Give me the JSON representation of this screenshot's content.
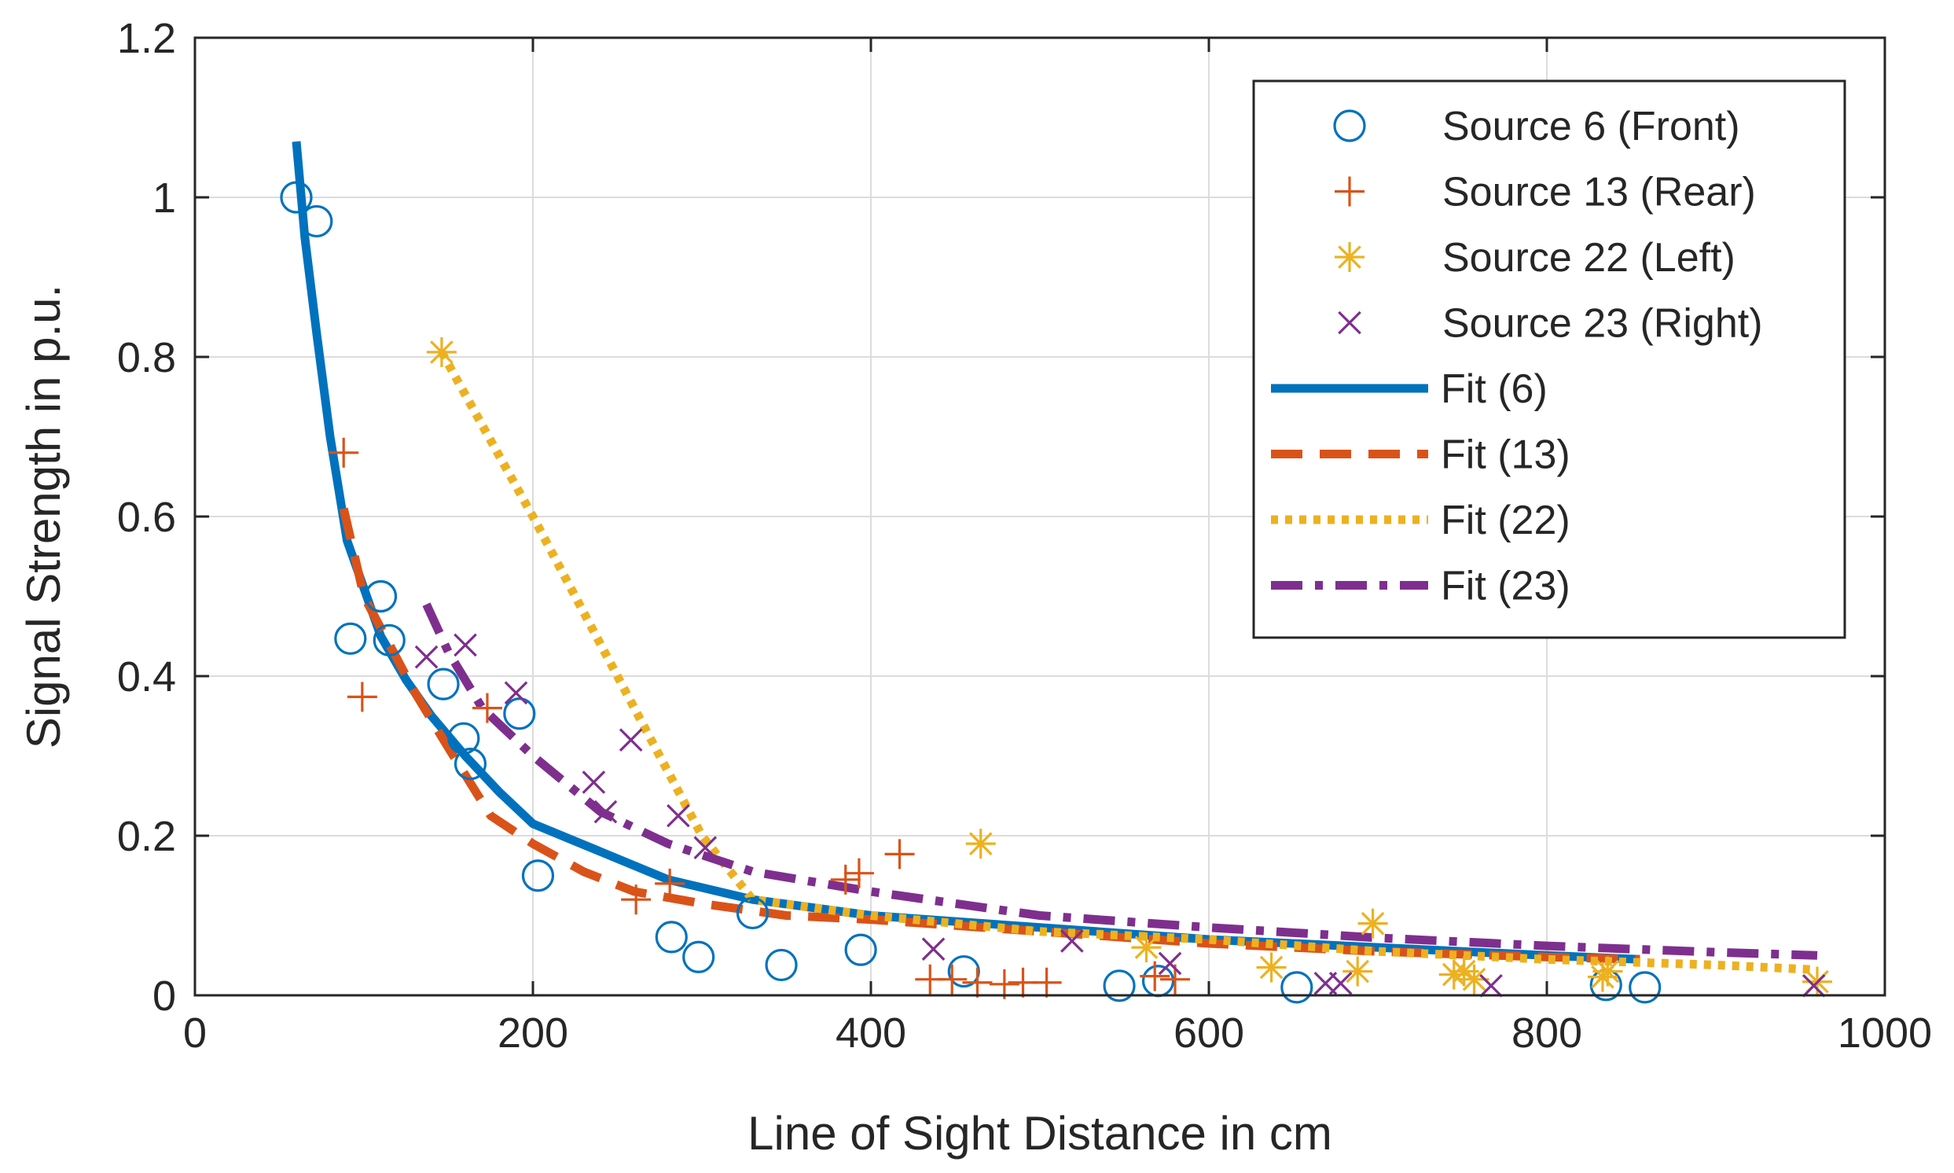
{
  "chart_data": {
    "type": "scatter",
    "title": "",
    "xlabel": "Line of Sight Distance in cm",
    "ylabel": "Signal Strength in p.u.",
    "xlim": [
      0,
      1000
    ],
    "ylim": [
      0,
      1.2
    ],
    "xticks": [
      0,
      200,
      400,
      600,
      800,
      1000
    ],
    "yticks": [
      0,
      0.2,
      0.4,
      0.6,
      0.8,
      1,
      1.2
    ],
    "xtick_labels": [
      "0",
      "200",
      "400",
      "600",
      "800",
      "1000"
    ],
    "ytick_labels": [
      "0",
      "0.2",
      "0.4",
      "0.6",
      "0.8",
      "1",
      "1.2"
    ],
    "grid": true,
    "legend_position": "top-right",
    "series": [
      {
        "name": "Source 6 (Front)",
        "kind": "scatter",
        "marker": "circle",
        "color": "#0072BD",
        "x": [
          60,
          72,
          92,
          110,
          115,
          147,
          159,
          163,
          192,
          203,
          282,
          298,
          330,
          347,
          394,
          455,
          547,
          570,
          652,
          835,
          858
        ],
        "y": [
          1.0,
          0.97,
          0.447,
          0.5,
          0.445,
          0.39,
          0.322,
          0.29,
          0.353,
          0.15,
          0.073,
          0.048,
          0.103,
          0.038,
          0.057,
          0.03,
          0.012,
          0.018,
          0.01,
          0.013,
          0.01
        ]
      },
      {
        "name": "Source 13 (Rear)",
        "kind": "scatter",
        "marker": "plus",
        "color": "#D95319",
        "x": [
          88,
          99,
          173,
          261,
          281,
          385,
          393,
          417,
          435,
          448,
          463,
          479,
          490,
          504,
          568,
          580
        ],
        "y": [
          0.68,
          0.374,
          0.36,
          0.12,
          0.14,
          0.145,
          0.153,
          0.177,
          0.02,
          0.02,
          0.016,
          0.014,
          0.016,
          0.016,
          0.024,
          0.02
        ]
      },
      {
        "name": "Source 22 (Left)",
        "kind": "scatter",
        "marker": "asterisk",
        "color": "#EDB120",
        "x": [
          146,
          465,
          563,
          637,
          688,
          697,
          745,
          751,
          757,
          833,
          836,
          960
        ],
        "y": [
          0.806,
          0.19,
          0.06,
          0.035,
          0.03,
          0.09,
          0.026,
          0.03,
          0.02,
          0.023,
          0.03,
          0.017
        ]
      },
      {
        "name": "Source 23 (Right)",
        "kind": "scatter",
        "marker": "x",
        "color": "#7E2F8E",
        "x": [
          137,
          160,
          190,
          236,
          243,
          258,
          286,
          302,
          437,
          519,
          577,
          669,
          678,
          767,
          958
        ],
        "y": [
          0.424,
          0.439,
          0.379,
          0.267,
          0.23,
          0.32,
          0.225,
          0.185,
          0.058,
          0.068,
          0.04,
          0.015,
          0.015,
          0.012,
          0.012
        ]
      },
      {
        "name": "Fit (6)",
        "kind": "line",
        "linestyle": "solid",
        "color": "#0072BD",
        "x": [
          60,
          65,
          72,
          80,
          90,
          100,
          110,
          125,
          140,
          160,
          180,
          200,
          240,
          280,
          330,
          400,
          500,
          600,
          700,
          800,
          855
        ],
        "y": [
          1.07,
          0.95,
          0.83,
          0.7,
          0.57,
          0.51,
          0.45,
          0.395,
          0.35,
          0.3,
          0.255,
          0.215,
          0.18,
          0.145,
          0.12,
          0.1,
          0.085,
          0.07,
          0.06,
          0.05,
          0.045
        ]
      },
      {
        "name": "Fit (13)",
        "kind": "line",
        "linestyle": "dashed",
        "color": "#D95319",
        "x": [
          88,
          100,
          115,
          130,
          150,
          175,
          200,
          230,
          260,
          300,
          350,
          400,
          500,
          600,
          700,
          800,
          855
        ],
        "y": [
          0.61,
          0.5,
          0.44,
          0.38,
          0.31,
          0.225,
          0.19,
          0.155,
          0.13,
          0.115,
          0.1,
          0.095,
          0.08,
          0.065,
          0.055,
          0.048,
          0.045
        ]
      },
      {
        "name": "Fit (22)",
        "kind": "line",
        "linestyle": "dotted",
        "color": "#EDB120",
        "x": [
          146,
          200,
          250,
          300,
          330,
          400,
          500,
          600,
          700,
          800,
          900,
          960
        ],
        "y": [
          0.806,
          0.6,
          0.4,
          0.2,
          0.12,
          0.1,
          0.08,
          0.07,
          0.055,
          0.045,
          0.038,
          0.032
        ]
      },
      {
        "name": "Fit (23)",
        "kind": "line",
        "linestyle": "dashdot",
        "color": "#7E2F8E",
        "x": [
          137,
          150,
          170,
          200,
          240,
          280,
          330,
          400,
          500,
          600,
          700,
          800,
          900,
          960
        ],
        "y": [
          0.49,
          0.43,
          0.36,
          0.3,
          0.23,
          0.19,
          0.155,
          0.13,
          0.1,
          0.085,
          0.072,
          0.062,
          0.054,
          0.05
        ]
      }
    ]
  }
}
